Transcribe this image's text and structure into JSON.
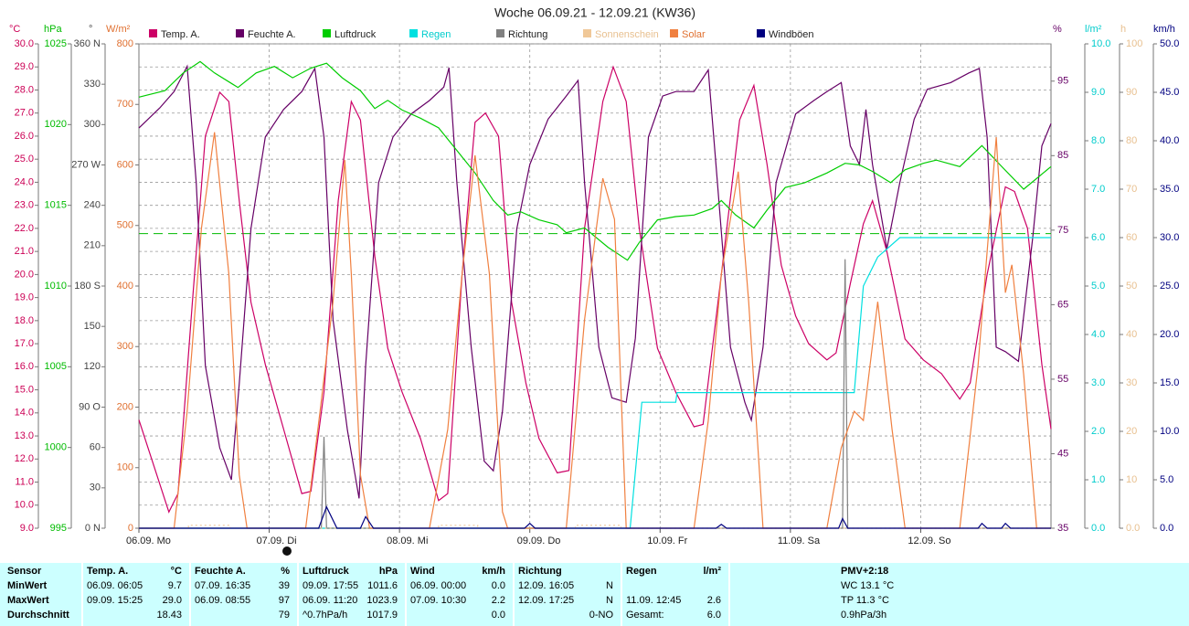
{
  "chart_data": {
    "type": "line",
    "title": "Woche 06.09.21 - 12.09.21 (KW36)",
    "legend_position": "top",
    "grid": true,
    "xlim": [
      0,
      7
    ],
    "xticks": [
      {
        "value": 0,
        "label": "06.09. Mo"
      },
      {
        "value": 1,
        "label": "07.09. Di"
      },
      {
        "value": 2,
        "label": "08.09. Mi"
      },
      {
        "value": 3,
        "label": "09.09. Do"
      },
      {
        "value": 4,
        "label": "10.09. Fr"
      },
      {
        "value": 5,
        "label": "11.09. Sa"
      },
      {
        "value": 6,
        "label": "12.09. So"
      }
    ],
    "axes": [
      {
        "unit": "°C",
        "side": "left",
        "color": "#cc0055",
        "lim": [
          9,
          30
        ],
        "ticks": [
          {
            "value": 9,
            "label": "9.0"
          },
          {
            "value": 10,
            "label": "10.0"
          },
          {
            "value": 11,
            "label": "11.0"
          },
          {
            "value": 12,
            "label": "12.0"
          },
          {
            "value": 13,
            "label": "13.0"
          },
          {
            "value": 14,
            "label": "14.0"
          },
          {
            "value": 15,
            "label": "15.0"
          },
          {
            "value": 16,
            "label": "16.0"
          },
          {
            "value": 17,
            "label": "17.0"
          },
          {
            "value": 18,
            "label": "18.0"
          },
          {
            "value": 19,
            "label": "19.0"
          },
          {
            "value": 20,
            "label": "20.0"
          },
          {
            "value": 21,
            "label": "21.0"
          },
          {
            "value": 22,
            "label": "22.0"
          },
          {
            "value": 23,
            "label": "23.0"
          },
          {
            "value": 24,
            "label": "24.0"
          },
          {
            "value": 25,
            "label": "25.0"
          },
          {
            "value": 26,
            "label": "26.0"
          },
          {
            "value": 27,
            "label": "27.0"
          },
          {
            "value": 28,
            "label": "28.0"
          },
          {
            "value": 29,
            "label": "29.0"
          },
          {
            "value": 30,
            "label": "30.0"
          }
        ]
      },
      {
        "unit": "hPa",
        "side": "left",
        "color": "#00bb00",
        "lim": [
          995,
          1025
        ],
        "ticks": [
          995,
          1000,
          1005,
          1010,
          1015,
          1020,
          1025
        ]
      },
      {
        "unit": "°",
        "side": "left",
        "color": "#444444",
        "lim": [
          0,
          360
        ],
        "ticks": [
          {
            "value": 0,
            "label": "0 N"
          },
          30,
          60,
          {
            "value": 90,
            "label": "90 O"
          },
          120,
          150,
          {
            "value": 180,
            "label": "180 S"
          },
          210,
          240,
          {
            "value": 270,
            "label": "270 W"
          },
          300,
          330,
          {
            "value": 360,
            "label": "360 N"
          }
        ]
      },
      {
        "unit": "W/m²",
        "side": "left",
        "color": "#e07030",
        "lim": [
          0,
          800
        ],
        "ticks": [
          0,
          100,
          200,
          300,
          400,
          500,
          600,
          700,
          800
        ]
      },
      {
        "unit": "%",
        "side": "right",
        "color": "#660066",
        "lim": [
          35,
          100
        ],
        "ticks": [
          35,
          45,
          55,
          65,
          75,
          85,
          95
        ]
      },
      {
        "unit": "l/m²",
        "side": "right",
        "color": "#00cccc",
        "lim": [
          0,
          10
        ],
        "ticks": [
          {
            "value": 0,
            "label": "0.0"
          },
          {
            "value": 1,
            "label": "1.0"
          },
          {
            "value": 2,
            "label": "2.0"
          },
          {
            "value": 3,
            "label": "3.0"
          },
          {
            "value": 4,
            "label": "4.0"
          },
          {
            "value": 5,
            "label": "5.0"
          },
          {
            "value": 6,
            "label": "6.0"
          },
          {
            "value": 7,
            "label": "7.0"
          },
          {
            "value": 8,
            "label": "8.0"
          },
          {
            "value": 9,
            "label": "9.0"
          },
          {
            "value": 10,
            "label": "10.0"
          }
        ]
      },
      {
        "unit": "h",
        "side": "right",
        "color": "#e8c090",
        "lim": [
          0,
          100
        ],
        "ticks": [
          {
            "value": 0,
            "label": "0.0"
          },
          10,
          20,
          30,
          40,
          50,
          60,
          70,
          80,
          90,
          100
        ]
      },
      {
        "unit": "km/h",
        "side": "right",
        "color": "#000080",
        "lim": [
          0,
          50
        ],
        "ticks": [
          {
            "value": 0,
            "label": "0.0"
          },
          {
            "value": 5,
            "label": "5.0"
          },
          {
            "value": 10,
            "label": "10.0"
          },
          {
            "value": 15,
            "label": "15.0"
          },
          {
            "value": 20,
            "label": "20.0"
          },
          {
            "value": 25,
            "label": "25.0"
          },
          {
            "value": 30,
            "label": "30.0"
          },
          {
            "value": 35,
            "label": "35.0"
          },
          {
            "value": 40,
            "label": "40.0"
          },
          {
            "value": 45,
            "label": "45.0"
          },
          {
            "value": 50,
            "label": "50.0"
          }
        ]
      }
    ],
    "series": [
      {
        "name": "Temp. A.",
        "color": "#cc0066",
        "axis": 0,
        "style": "solid",
        "x": [
          0,
          0.23,
          0.3,
          0.41,
          0.51,
          0.62,
          0.69,
          0.77,
          0.86,
          0.97,
          1.11,
          1.25,
          1.32,
          1.42,
          1.53,
          1.63,
          1.7,
          1.81,
          1.91,
          2.02,
          2.16,
          2.3,
          2.37,
          2.48,
          2.58,
          2.66,
          2.76,
          2.86,
          2.97,
          3.07,
          3.21,
          3.3,
          3.42,
          3.56,
          3.64,
          3.74,
          3.84,
          3.98,
          4.12,
          4.26,
          4.33,
          4.47,
          4.61,
          4.72,
          4.82,
          4.93,
          5.04,
          5.14,
          5.28,
          5.35,
          5.46,
          5.56,
          5.63,
          5.74,
          5.88,
          6.02,
          6.16,
          6.3,
          6.38,
          6.51,
          6.65,
          6.72,
          6.82,
          6.93,
          7
        ],
        "values": [
          13.7,
          9.7,
          10.5,
          18.8,
          26.0,
          27.9,
          27.5,
          23.2,
          18.8,
          16.1,
          13.3,
          10.5,
          10.6,
          14.9,
          23.2,
          27.5,
          26.7,
          20.8,
          16.8,
          14.9,
          12.9,
          10.2,
          10.5,
          20.0,
          26.6,
          27.0,
          26.0,
          18.8,
          15.3,
          12.9,
          11.4,
          11.5,
          22.0,
          27.5,
          29.0,
          27.5,
          22.0,
          16.8,
          14.9,
          13.4,
          13.5,
          20.0,
          26.7,
          28.2,
          24.8,
          20.4,
          18.2,
          17.0,
          16.3,
          16.6,
          19.6,
          22.2,
          23.2,
          21.0,
          17.2,
          16.3,
          15.7,
          14.6,
          15.3,
          20.0,
          23.8,
          23.6,
          22.0,
          16.1,
          13.3
        ]
      },
      {
        "name": "Feuchte A.",
        "color": "#660066",
        "axis": 4,
        "style": "solid",
        "x": [
          0,
          0.16,
          0.27,
          0.37,
          0.44,
          0.51,
          0.62,
          0.71,
          0.77,
          0.86,
          0.97,
          1.11,
          1.25,
          1.35,
          1.42,
          1.49,
          1.6,
          1.69,
          1.74,
          1.84,
          1.95,
          2.09,
          2.23,
          2.34,
          2.38,
          2.44,
          2.55,
          2.65,
          2.72,
          2.79,
          2.9,
          3,
          3.14,
          3.28,
          3.37,
          3.42,
          3.53,
          3.63,
          3.74,
          3.81,
          3.91,
          4.02,
          4.12,
          4.26,
          4.37,
          4.44,
          4.54,
          4.65,
          4.7,
          4.79,
          4.89,
          5.04,
          5.18,
          5.28,
          5.39,
          5.46,
          5.53,
          5.58,
          5.63,
          5.74,
          5.84,
          5.95,
          6.05,
          6.23,
          6.37,
          6.45,
          6.51,
          6.58,
          6.65,
          6.75,
          6.86,
          6.93,
          7
        ],
        "values": [
          88.7,
          91.4,
          93.6,
          97.0,
          81.4,
          56.8,
          45.8,
          41.5,
          54.4,
          75.2,
          87.5,
          91.2,
          93.6,
          96.7,
          87.5,
          63.0,
          48.2,
          39.0,
          56.8,
          81.4,
          87.5,
          90.6,
          92.4,
          94.2,
          96.8,
          81.4,
          59.3,
          44.0,
          42.7,
          50.7,
          75.2,
          83.8,
          89.9,
          93.0,
          95.1,
          81.4,
          59.3,
          52.5,
          51.9,
          60.5,
          87.5,
          93.0,
          93.6,
          93.6,
          96.5,
          81.4,
          59.3,
          51.9,
          49.5,
          59.3,
          81.4,
          90.6,
          92.4,
          93.6,
          94.8,
          86.3,
          83.8,
          91.2,
          83.8,
          72.5,
          81.4,
          89.9,
          93.9,
          94.8,
          96.1,
          96.7,
          87.5,
          59.3,
          58.7,
          57.4,
          74.0,
          86.3,
          89.3
        ]
      },
      {
        "name": "Luftdruck",
        "color": "#00cc00",
        "axis": 1,
        "style": "solid",
        "x": [
          0,
          0.2,
          0.34,
          0.47,
          0.58,
          0.76,
          0.9,
          1.04,
          1.18,
          1.32,
          1.44,
          1.56,
          1.7,
          1.81,
          1.91,
          2.02,
          2.16,
          2.3,
          2.44,
          2.58,
          2.72,
          2.83,
          2.93,
          3.07,
          3.21,
          3.28,
          3.42,
          3.6,
          3.75,
          3.84,
          3.98,
          4.12,
          4.26,
          4.4,
          4.47,
          4.58,
          4.72,
          4.82,
          4.96,
          5.11,
          5.28,
          5.42,
          5.53,
          5.63,
          5.77,
          5.88,
          6.02,
          6.12,
          6.3,
          6.47,
          6.61,
          6.79,
          7
        ],
        "values": [
          1021.7,
          1022.1,
          1023.2,
          1023.9,
          1023.2,
          1022.3,
          1023.2,
          1023.6,
          1022.9,
          1023.5,
          1023.8,
          1022.9,
          1022.1,
          1021.0,
          1021.5,
          1020.9,
          1020.4,
          1019.8,
          1018.4,
          1017.0,
          1015.3,
          1014.4,
          1014.6,
          1014.1,
          1013.8,
          1013.3,
          1013.6,
          1012.4,
          1011.6,
          1012.7,
          1014.1,
          1014.3,
          1014.4,
          1014.8,
          1015.3,
          1014.4,
          1013.6,
          1014.7,
          1016.1,
          1016.4,
          1017.0,
          1017.6,
          1017.5,
          1017.1,
          1016.4,
          1017.2,
          1017.6,
          1017.8,
          1017.4,
          1018.7,
          1017.5,
          1016.0,
          1017.4
        ]
      },
      {
        "name": "Regen",
        "color": "#00e0e0",
        "axis": 5,
        "style": "solid",
        "label_color": "#00cccc",
        "x": [
          0,
          3.77,
          3.86,
          4.12,
          4.13,
          5.49,
          5.56,
          5.67,
          5.84,
          7
        ],
        "values": [
          0,
          0,
          2.6,
          2.6,
          2.8,
          2.8,
          5.0,
          5.6,
          6.0,
          6.0
        ]
      },
      {
        "name": "Richtung",
        "color": "#808080",
        "axis": 2,
        "style": "solid",
        "x": [
          0,
          1.4,
          1.42,
          1.44,
          5.4,
          5.42,
          5.44,
          7
        ],
        "values": [
          0,
          0,
          68,
          0,
          0,
          200,
          0,
          0
        ]
      },
      {
        "name": "Sonnenschein",
        "color": "#f0c898",
        "axis": 6,
        "style": "dotted",
        "label_color": "#e8c090",
        "x": [
          0,
          0.38,
          0.38,
          0.7,
          0.7,
          2.3,
          2.3,
          2.6,
          2.6,
          3.35,
          3.35,
          3.7,
          3.7,
          7
        ],
        "values": [
          0,
          0,
          0.6,
          0.6,
          0,
          0,
          0.6,
          0.6,
          0,
          0,
          0.6,
          0.6,
          0,
          0
        ]
      },
      {
        "name": "Solar",
        "color": "#f08040",
        "axis": 3,
        "style": "solid",
        "label_color": "#e07030",
        "x": [
          0,
          0.27,
          0.37,
          0.48,
          0.58,
          0.69,
          0.77,
          0.83,
          1.28,
          1.39,
          1.49,
          1.58,
          1.63,
          1.7,
          1.77,
          2.23,
          2.37,
          2.48,
          2.58,
          2.69,
          2.79,
          2.83,
          3.28,
          3.42,
          3.56,
          3.65,
          3.74,
          4.26,
          4.37,
          4.47,
          4.6,
          4.68,
          4.79,
          5.28,
          5.39,
          5.49,
          5.56,
          5.67,
          5.78,
          5.88,
          6.3,
          6.44,
          6.58,
          6.65,
          6.7,
          6.79,
          6.89,
          7
        ],
        "values": [
          0,
          0,
          193,
          495,
          654,
          420,
          88,
          0,
          0,
          193,
          374,
          608,
          420,
          88,
          0,
          0,
          163,
          420,
          616,
          420,
          27,
          0,
          0,
          344,
          578,
          510,
          0,
          0,
          178,
          420,
          589,
          374,
          0,
          0,
          133,
          193,
          178,
          374,
          163,
          0,
          0,
          269,
          646,
          389,
          435,
          254,
          0,
          0
        ]
      },
      {
        "name": "Windböen",
        "color": "#000080",
        "axis": 7,
        "style": "solid",
        "x": [
          0,
          1.38,
          1.44,
          1.52,
          1.7,
          1.74,
          1.8,
          2.96,
          3,
          3.04,
          4.43,
          4.47,
          4.51,
          5.37,
          5.4,
          5.44,
          6.44,
          6.47,
          6.51,
          6.62,
          6.65,
          6.69,
          7
        ],
        "values": [
          0,
          0,
          2.2,
          0,
          0,
          1.2,
          0,
          0,
          0.5,
          0,
          0,
          0.4,
          0,
          0,
          1.0,
          0,
          0,
          0.5,
          0,
          0,
          0.5,
          0,
          0
        ]
      }
    ],
    "reference_lines": [
      {
        "axis": 1,
        "value": 1013.25,
        "color": "#00bb00"
      }
    ]
  },
  "table": {
    "sensor_header": "Sensor",
    "row_labels": [
      "MinWert",
      "MaxWert",
      "Durchschnitt"
    ],
    "columns": [
      {
        "name": "Temp. A.",
        "unit": "°C",
        "cells": [
          [
            "06.09. 06:05",
            "9.7"
          ],
          [
            "09.09. 15:25",
            "29.0"
          ],
          [
            "18.43"
          ]
        ]
      },
      {
        "name": "Feuchte A.",
        "unit": "%",
        "cells": [
          [
            "07.09. 16:35",
            "39"
          ],
          [
            "06.09. 08:55",
            "97"
          ],
          [
            "79"
          ]
        ]
      },
      {
        "name": "Luftdruck",
        "unit": "hPa",
        "cells": [
          [
            "09.09. 17:55",
            "1011.6"
          ],
          [
            "06.09. 11:20",
            "1023.9"
          ],
          [
            "^0.7hPa/h",
            "1017.9"
          ]
        ]
      },
      {
        "name": "Wind",
        "unit": "km/h",
        "cells": [
          [
            "06.09. 00:00",
            "0.0"
          ],
          [
            "07.09. 10:30",
            "2.2"
          ],
          [
            "0.0"
          ]
        ]
      },
      {
        "name": "Richtung",
        "cells": [
          [
            "12.09. 16:05",
            "N"
          ],
          [
            "12.09. 17:25",
            "N"
          ],
          [
            "0-NO"
          ]
        ]
      },
      {
        "name": "Regen",
        "unit": "l/m²",
        "cells": [
          [],
          [
            "11.09. 12:45",
            "2.6"
          ],
          [
            "Gesamt:",
            "6.0"
          ]
        ]
      }
    ],
    "pmv": {
      "name": "PMV+2:18",
      "cells": [
        "WC 13.1 °C",
        "TP 11.3 °C",
        "0.9hPa/3h"
      ]
    }
  }
}
